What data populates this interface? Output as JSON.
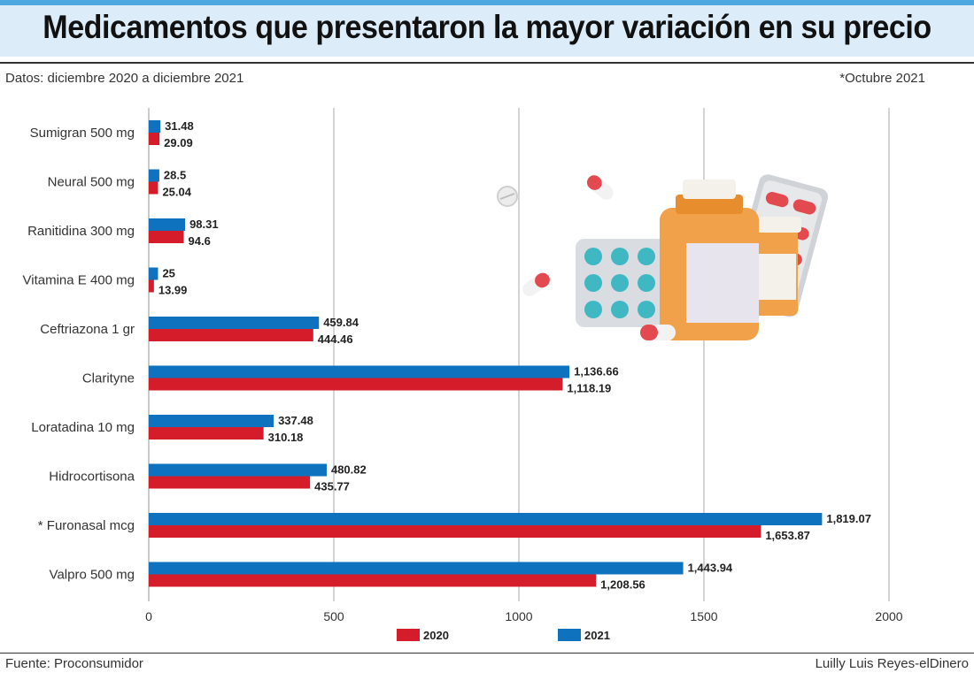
{
  "header": {
    "title": "Medicamentos que presentaron la mayor variación en su precio",
    "subtitle": "Datos: diciembre 2020 a diciembre 2021",
    "note": "*Octubre 2021"
  },
  "footer": {
    "source": "Fuente: Proconsumidor",
    "credit": "Luilly Luis Reyes-elDinero"
  },
  "colors": {
    "2020": "#d41c2a",
    "2021": "#0e72be",
    "grid": "#d4d4d4"
  },
  "chart_data": {
    "type": "bar",
    "orientation": "horizontal",
    "categories": [
      "Sumigran 500 mg",
      "Neural 500 mg",
      "Ranitidina 300 mg",
      "Vitamina E 400 mg",
      "Ceftriazona 1 gr",
      "Clarityne",
      "Loratadina 10 mg",
      "Hidrocortisona",
      "* Furonasal mcg",
      "Valpro 500 mg"
    ],
    "series": [
      {
        "name": "2021",
        "values": [
          31.48,
          28.5,
          98.31,
          25,
          459.84,
          1136.66,
          337.48,
          480.82,
          1819.07,
          1443.94
        ],
        "labels": [
          "31.48",
          "28.5",
          "98.31",
          "25",
          "459.84",
          "1,136.66",
          "337.48",
          "480.82",
          "1,819.07",
          "1,443.94"
        ]
      },
      {
        "name": "2020",
        "values": [
          29.09,
          25.04,
          94.6,
          13.99,
          444.46,
          1118.19,
          310.18,
          435.77,
          1653.87,
          1208.56
        ],
        "labels": [
          "29.09",
          "25.04",
          "94.6",
          "13.99",
          "444.46",
          "1,118.19",
          "310.18",
          "435.77",
          "1,653.87",
          "1,208.56"
        ]
      }
    ],
    "xlim": [
      0,
      2000
    ],
    "xticks": [
      0,
      500,
      1000,
      1500,
      2000
    ],
    "xtick_labels": [
      "0",
      "500",
      "1000",
      "1500",
      "2000"
    ],
    "grid": "vertical",
    "legend": {
      "position": "bottom",
      "order": [
        "2020",
        "2021"
      ]
    }
  }
}
